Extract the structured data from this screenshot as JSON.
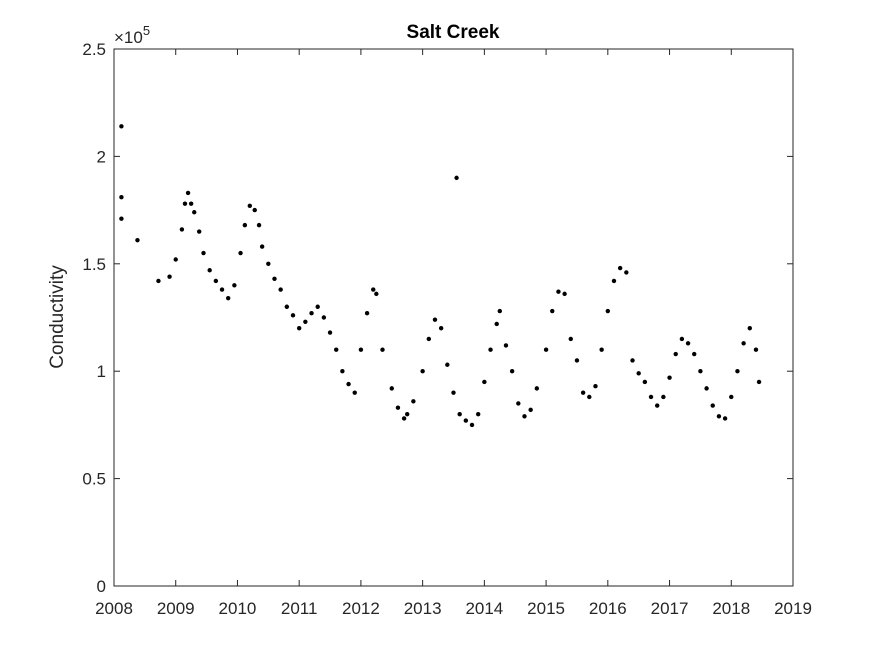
{
  "chart_data": {
    "type": "scatter",
    "title": "Salt Creek",
    "xlabel": "",
    "ylabel": "Conductivity",
    "y_exponent_label": "×10",
    "y_exponent_power": "5",
    "xlim": [
      2008,
      2019
    ],
    "ylim": [
      0,
      250000
    ],
    "x_ticks": [
      2008,
      2009,
      2010,
      2011,
      2012,
      2013,
      2014,
      2015,
      2016,
      2017,
      2018,
      2019
    ],
    "x_tick_labels": [
      "2008",
      "2009",
      "2010",
      "2011",
      "2012",
      "2013",
      "2014",
      "2015",
      "2016",
      "2017",
      "2018",
      "2019"
    ],
    "y_ticks": [
      0,
      50000,
      100000,
      150000,
      200000,
      250000
    ],
    "y_tick_labels": [
      "0",
      "0.5",
      "1",
      "1.5",
      "2",
      "2.5"
    ],
    "grid": false,
    "marker_color": "#000000",
    "series": [
      {
        "points": [
          [
            2008.12,
            214000
          ],
          [
            2008.12,
            181000
          ],
          [
            2008.12,
            171000
          ],
          [
            2008.38,
            161000
          ],
          [
            2008.72,
            142000
          ],
          [
            2008.9,
            144000
          ],
          [
            2009.0,
            152000
          ],
          [
            2009.1,
            166000
          ],
          [
            2009.15,
            178000
          ],
          [
            2009.2,
            183000
          ],
          [
            2009.25,
            178000
          ],
          [
            2009.3,
            174000
          ],
          [
            2009.38,
            165000
          ],
          [
            2009.45,
            155000
          ],
          [
            2009.55,
            147000
          ],
          [
            2009.65,
            142000
          ],
          [
            2009.75,
            138000
          ],
          [
            2009.85,
            134000
          ],
          [
            2009.95,
            140000
          ],
          [
            2010.05,
            155000
          ],
          [
            2010.12,
            168000
          ],
          [
            2010.2,
            177000
          ],
          [
            2010.28,
            175000
          ],
          [
            2010.35,
            168000
          ],
          [
            2010.4,
            158000
          ],
          [
            2010.5,
            150000
          ],
          [
            2010.6,
            143000
          ],
          [
            2010.7,
            138000
          ],
          [
            2010.8,
            130000
          ],
          [
            2010.9,
            126000
          ],
          [
            2011.0,
            120000
          ],
          [
            2011.1,
            123000
          ],
          [
            2011.2,
            127000
          ],
          [
            2011.3,
            130000
          ],
          [
            2011.4,
            125000
          ],
          [
            2011.5,
            118000
          ],
          [
            2011.6,
            110000
          ],
          [
            2011.7,
            100000
          ],
          [
            2011.8,
            94000
          ],
          [
            2011.9,
            90000
          ],
          [
            2012.0,
            110000
          ],
          [
            2012.1,
            127000
          ],
          [
            2012.2,
            138000
          ],
          [
            2012.25,
            136000
          ],
          [
            2012.35,
            110000
          ],
          [
            2012.5,
            92000
          ],
          [
            2012.6,
            83000
          ],
          [
            2012.7,
            78000
          ],
          [
            2012.75,
            80000
          ],
          [
            2012.85,
            86000
          ],
          [
            2013.0,
            100000
          ],
          [
            2013.1,
            115000
          ],
          [
            2013.2,
            124000
          ],
          [
            2013.3,
            120000
          ],
          [
            2013.4,
            103000
          ],
          [
            2013.5,
            90000
          ],
          [
            2013.55,
            190000
          ],
          [
            2013.6,
            80000
          ],
          [
            2013.7,
            77000
          ],
          [
            2013.8,
            75000
          ],
          [
            2013.9,
            80000
          ],
          [
            2014.0,
            95000
          ],
          [
            2014.1,
            110000
          ],
          [
            2014.2,
            122000
          ],
          [
            2014.25,
            128000
          ],
          [
            2014.35,
            112000
          ],
          [
            2014.45,
            100000
          ],
          [
            2014.55,
            85000
          ],
          [
            2014.65,
            79000
          ],
          [
            2014.75,
            82000
          ],
          [
            2014.85,
            92000
          ],
          [
            2015.0,
            110000
          ],
          [
            2015.1,
            128000
          ],
          [
            2015.2,
            137000
          ],
          [
            2015.3,
            136000
          ],
          [
            2015.4,
            115000
          ],
          [
            2015.5,
            105000
          ],
          [
            2015.6,
            90000
          ],
          [
            2015.7,
            88000
          ],
          [
            2015.8,
            93000
          ],
          [
            2015.9,
            110000
          ],
          [
            2016.0,
            128000
          ],
          [
            2016.1,
            142000
          ],
          [
            2016.2,
            148000
          ],
          [
            2016.3,
            146000
          ],
          [
            2016.4,
            105000
          ],
          [
            2016.5,
            99000
          ],
          [
            2016.6,
            95000
          ],
          [
            2016.7,
            88000
          ],
          [
            2016.8,
            84000
          ],
          [
            2016.9,
            88000
          ],
          [
            2017.0,
            97000
          ],
          [
            2017.1,
            108000
          ],
          [
            2017.2,
            115000
          ],
          [
            2017.3,
            113000
          ],
          [
            2017.4,
            108000
          ],
          [
            2017.5,
            100000
          ],
          [
            2017.6,
            92000
          ],
          [
            2017.7,
            84000
          ],
          [
            2017.8,
            79000
          ],
          [
            2017.9,
            78000
          ],
          [
            2018.0,
            88000
          ],
          [
            2018.1,
            100000
          ],
          [
            2018.2,
            113000
          ],
          [
            2018.3,
            120000
          ],
          [
            2018.4,
            110000
          ],
          [
            2018.45,
            95000
          ]
        ]
      }
    ]
  }
}
